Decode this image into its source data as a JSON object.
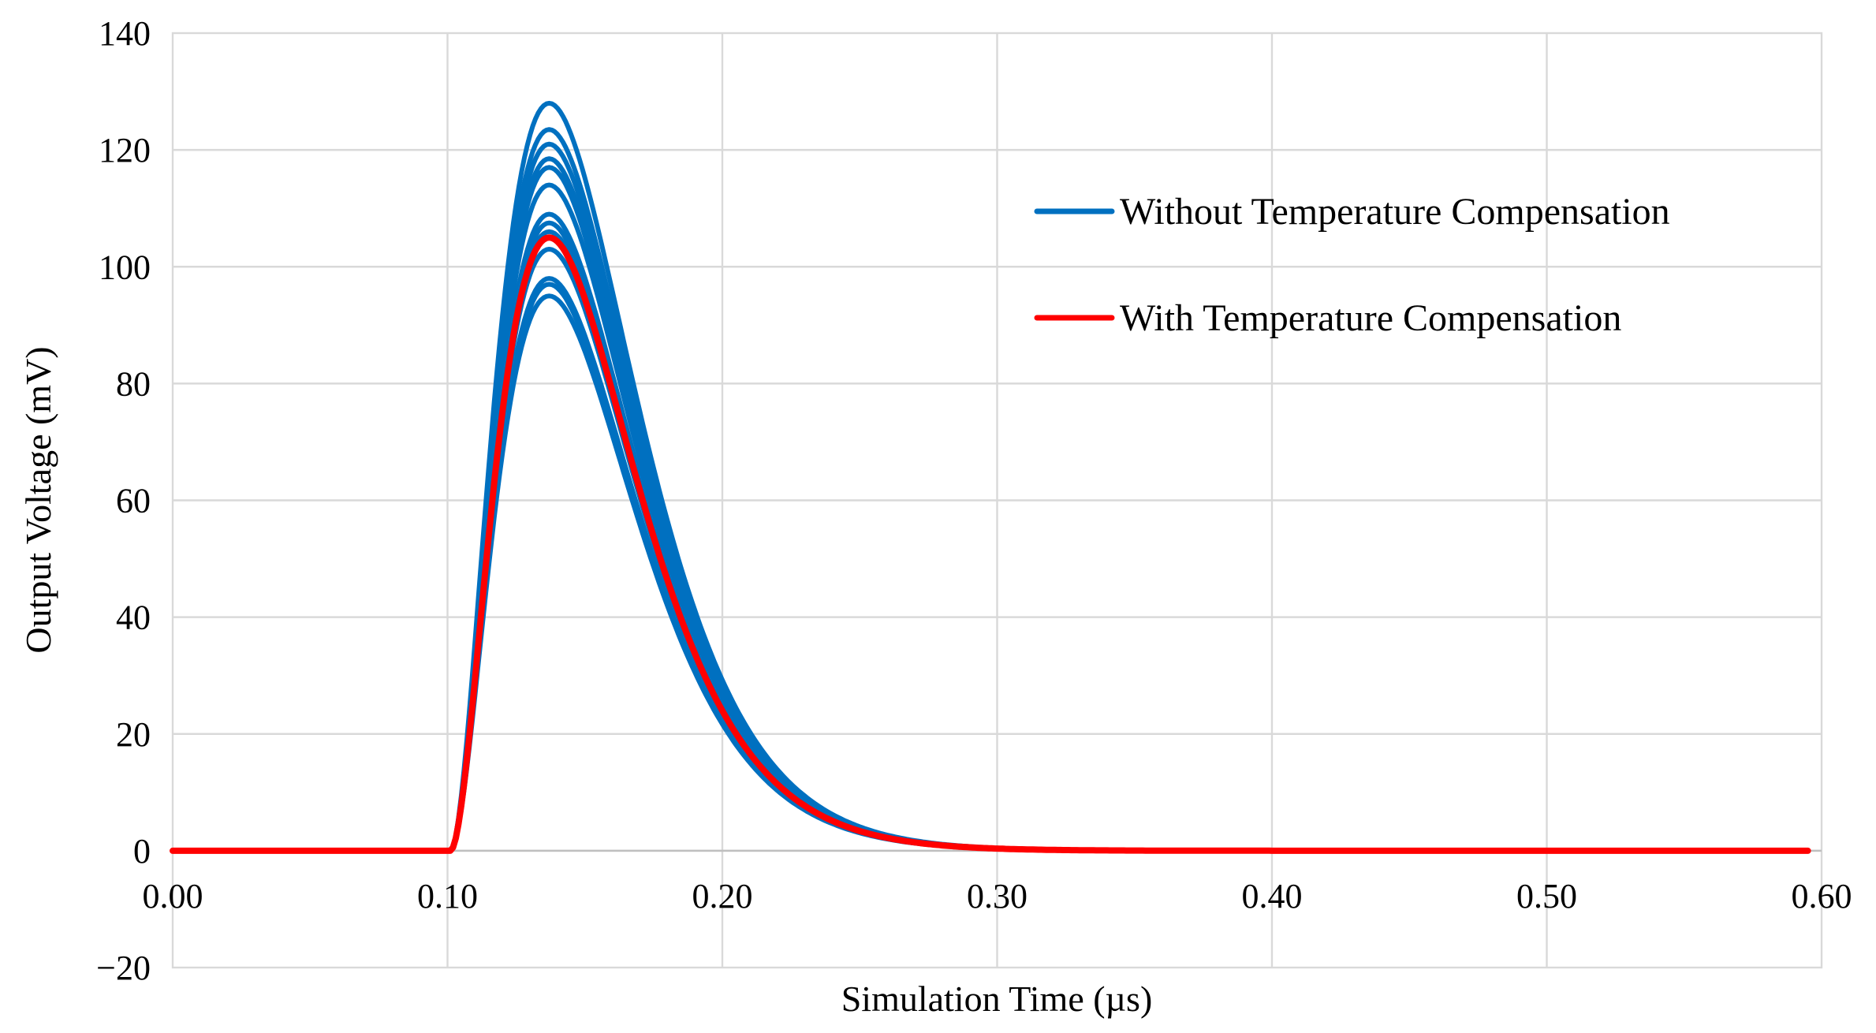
{
  "chart_data": {
    "type": "line",
    "title": "",
    "xlabel": "Simulation Time (µs)",
    "ylabel": "Output Voltage (mV)",
    "xlim": [
      0,
      0.6
    ],
    "ylim": [
      -20,
      140
    ],
    "x_ticks": [
      0,
      0.1,
      0.2,
      0.3,
      0.4,
      0.5,
      0.6
    ],
    "x_tick_labels": [
      "0.00",
      "0.10",
      "0.20",
      "0.30",
      "0.40",
      "0.50",
      "0.60"
    ],
    "y_ticks": [
      -20,
      0,
      20,
      40,
      60,
      80,
      100,
      120,
      140
    ],
    "y_tick_labels": [
      "−20",
      "0",
      "20",
      "40",
      "60",
      "80",
      "100",
      "120",
      "140"
    ],
    "grid": true,
    "legend_position": "top-right",
    "pulse": {
      "onset_us": 0.101,
      "peak_time_us": 0.137,
      "end_us": 0.595
    },
    "series": [
      {
        "name": "Without Temperature Compensation",
        "color": "#0070C0",
        "peaks_mV": [
          128,
          123.5,
          121,
          118.5,
          117,
          114,
          109,
          107.5,
          106,
          103,
          98,
          97,
          95
        ]
      },
      {
        "name": "With Temperature Compensation",
        "color": "#FF0000",
        "peaks_mV": [
          105
        ]
      }
    ]
  }
}
